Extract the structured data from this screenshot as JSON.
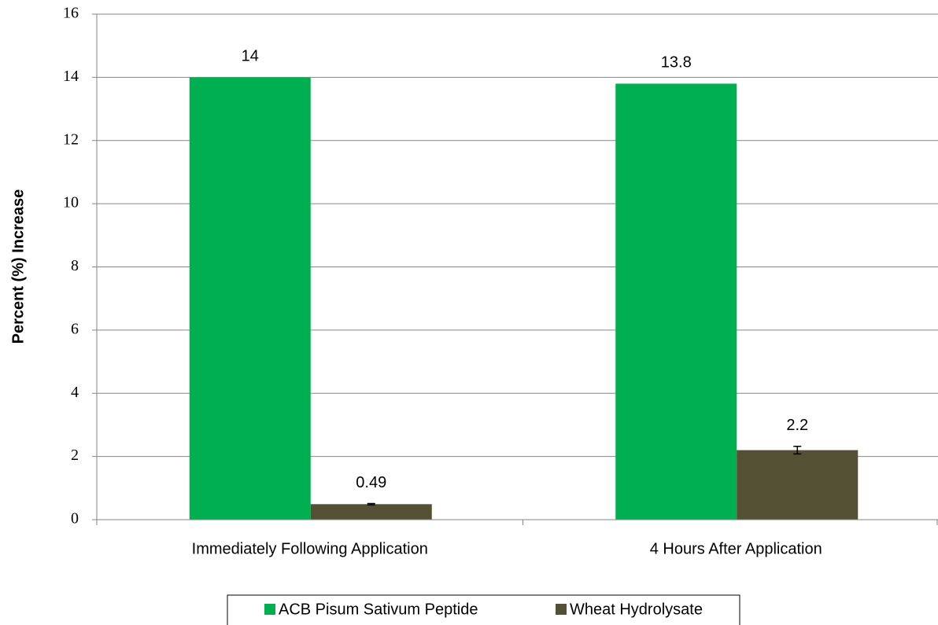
{
  "chart_data": {
    "type": "bar",
    "y_label": "Percent (%) Increase",
    "categories": [
      "Immediately Following Application",
      "4 Hours After Application"
    ],
    "series": [
      {
        "name": "ACB Pisum Sativum Peptide",
        "color": "#00b050",
        "values": [
          14,
          13.8
        ]
      },
      {
        "name": "Wheat Hydrolysate",
        "color": "#545033",
        "values": [
          0.49,
          2.2
        ],
        "errors": [
          0.02,
          0.12
        ]
      }
    ],
    "ylim": [
      0,
      16
    ],
    "yticks": [
      0,
      2,
      4,
      6,
      8,
      10,
      12,
      14,
      16
    ],
    "grid": true,
    "legend": "bottom"
  }
}
